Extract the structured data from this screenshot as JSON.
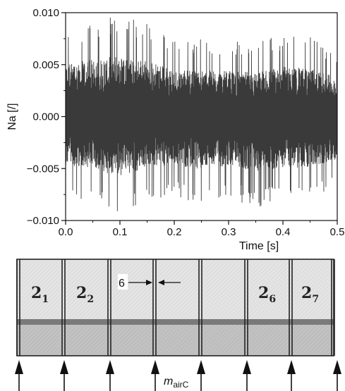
{
  "chart_data": {
    "type": "line",
    "xlabel": "Time [s]",
    "ylabel": "Na [/]",
    "xlim": [
      0.0,
      0.5
    ],
    "ylim": [
      -0.01,
      0.01
    ],
    "xticks": [
      "0.0",
      "0.1",
      "0.2",
      "0.3",
      "0.4",
      "0.5"
    ],
    "yticks": [
      "0.010",
      "0.005",
      "0.000",
      "−0.005",
      "−0.010"
    ],
    "grid": false,
    "signal": {
      "description_free": true,
      "x_start": 0.0,
      "x_end": 0.5,
      "envelope_time": [
        0.0,
        0.05,
        0.1,
        0.15,
        0.2,
        0.25,
        0.3,
        0.35,
        0.4,
        0.45,
        0.5
      ],
      "envelope_max": [
        0.0085,
        0.0092,
        0.0098,
        0.009,
        0.0075,
        0.0075,
        0.0073,
        0.0072,
        0.008,
        0.0078,
        0.0062
      ],
      "envelope_min": [
        -0.0078,
        -0.0082,
        -0.0098,
        -0.0082,
        -0.0078,
        -0.0085,
        -0.0078,
        -0.0088,
        -0.0082,
        -0.0082,
        -0.0068
      ],
      "color": "#3a3a3a"
    }
  },
  "diagram": {
    "cell_labels": [
      {
        "main": "2",
        "sub": "1"
      },
      {
        "main": "2",
        "sub": "2"
      },
      {
        "main": "",
        "sub": ""
      },
      {
        "main": "",
        "sub": ""
      },
      {
        "main": "",
        "sub": ""
      },
      {
        "main": "2",
        "sub": "6"
      },
      {
        "main": "2",
        "sub": "7"
      }
    ],
    "gap_label": "6",
    "flow_label_main": "m",
    "flow_label_sub": "airC",
    "colors": {
      "upper_fill": "#e4e4e4",
      "lower_fill": "#c2c2c2",
      "band": "#7a7a7a",
      "outline": "#222222"
    }
  }
}
